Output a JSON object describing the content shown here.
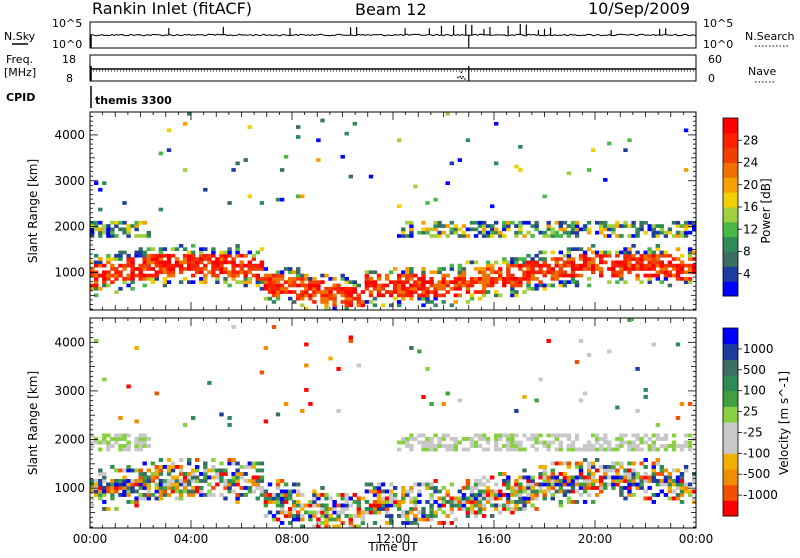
{
  "header": {
    "station": "Rankin Inlet (fitACF)",
    "beam": "Beam 12",
    "date": "10/Sep/2009"
  },
  "top_panels": {
    "nsky_label": "N.Sky",
    "nsearch_label": "N.Search",
    "log_top": "10^5",
    "log_bottom": "10^0",
    "freq_label": "Freq.",
    "freq_unit": "[MHz]",
    "freq_top": "18",
    "freq_bottom": "8",
    "nave_label": "Nave",
    "nave_top": "60",
    "nave_bottom": "0",
    "cpid_label": "CPID",
    "cpid_value": "themis 3300"
  },
  "colors": {
    "power": [
      "#0000ff",
      "#1e3ca0",
      "#3c6e64",
      "#2e8b57",
      "#48b848",
      "#a0d040",
      "#f0d000",
      "#f7a000",
      "#f07000",
      "#f04000",
      "#ff2000",
      "#ff0000"
    ],
    "velocity": [
      "#ff0000",
      "#f05000",
      "#f08c00",
      "#f0b000",
      "#c8c8c8",
      "#c8c8c8",
      "#88d040",
      "#40a040",
      "#2e8b57",
      "#3c6e64",
      "#1e3ca0",
      "#0000ff"
    ]
  },
  "chart_data": [
    {
      "type": "heatmap",
      "title": "Power",
      "ylabel": "Slant Range [km]",
      "xlabel": "Time UT",
      "ylim": [
        180,
        4500
      ],
      "y_ticks": [
        "1000",
        "2000",
        "3000",
        "4000"
      ],
      "x_ticks": [
        "00:00",
        "04:00",
        "08:00",
        "12:00",
        "16:00",
        "20:00",
        "00:00"
      ],
      "colorbar_label": "Power [dB]",
      "colorbar_ticks": [
        "4",
        "8",
        "12",
        "16",
        "20",
        "24",
        "28"
      ],
      "colorbar_range": [
        0,
        30
      ]
    },
    {
      "type": "heatmap",
      "title": "Velocity",
      "ylabel": "Slant Range [km]",
      "xlabel": "Time UT",
      "ylim": [
        180,
        4500
      ],
      "y_ticks": [
        "1000",
        "2000",
        "3000",
        "4000"
      ],
      "x_ticks": [
        "00:00",
        "04:00",
        "08:00",
        "12:00",
        "16:00",
        "20:00",
        "00:00"
      ],
      "colorbar_label": "Velocity [m s^-1]",
      "colorbar_ticks": [
        "1000",
        "500",
        "100",
        "25",
        "-25",
        "-100",
        "-500",
        "-1000"
      ]
    }
  ]
}
